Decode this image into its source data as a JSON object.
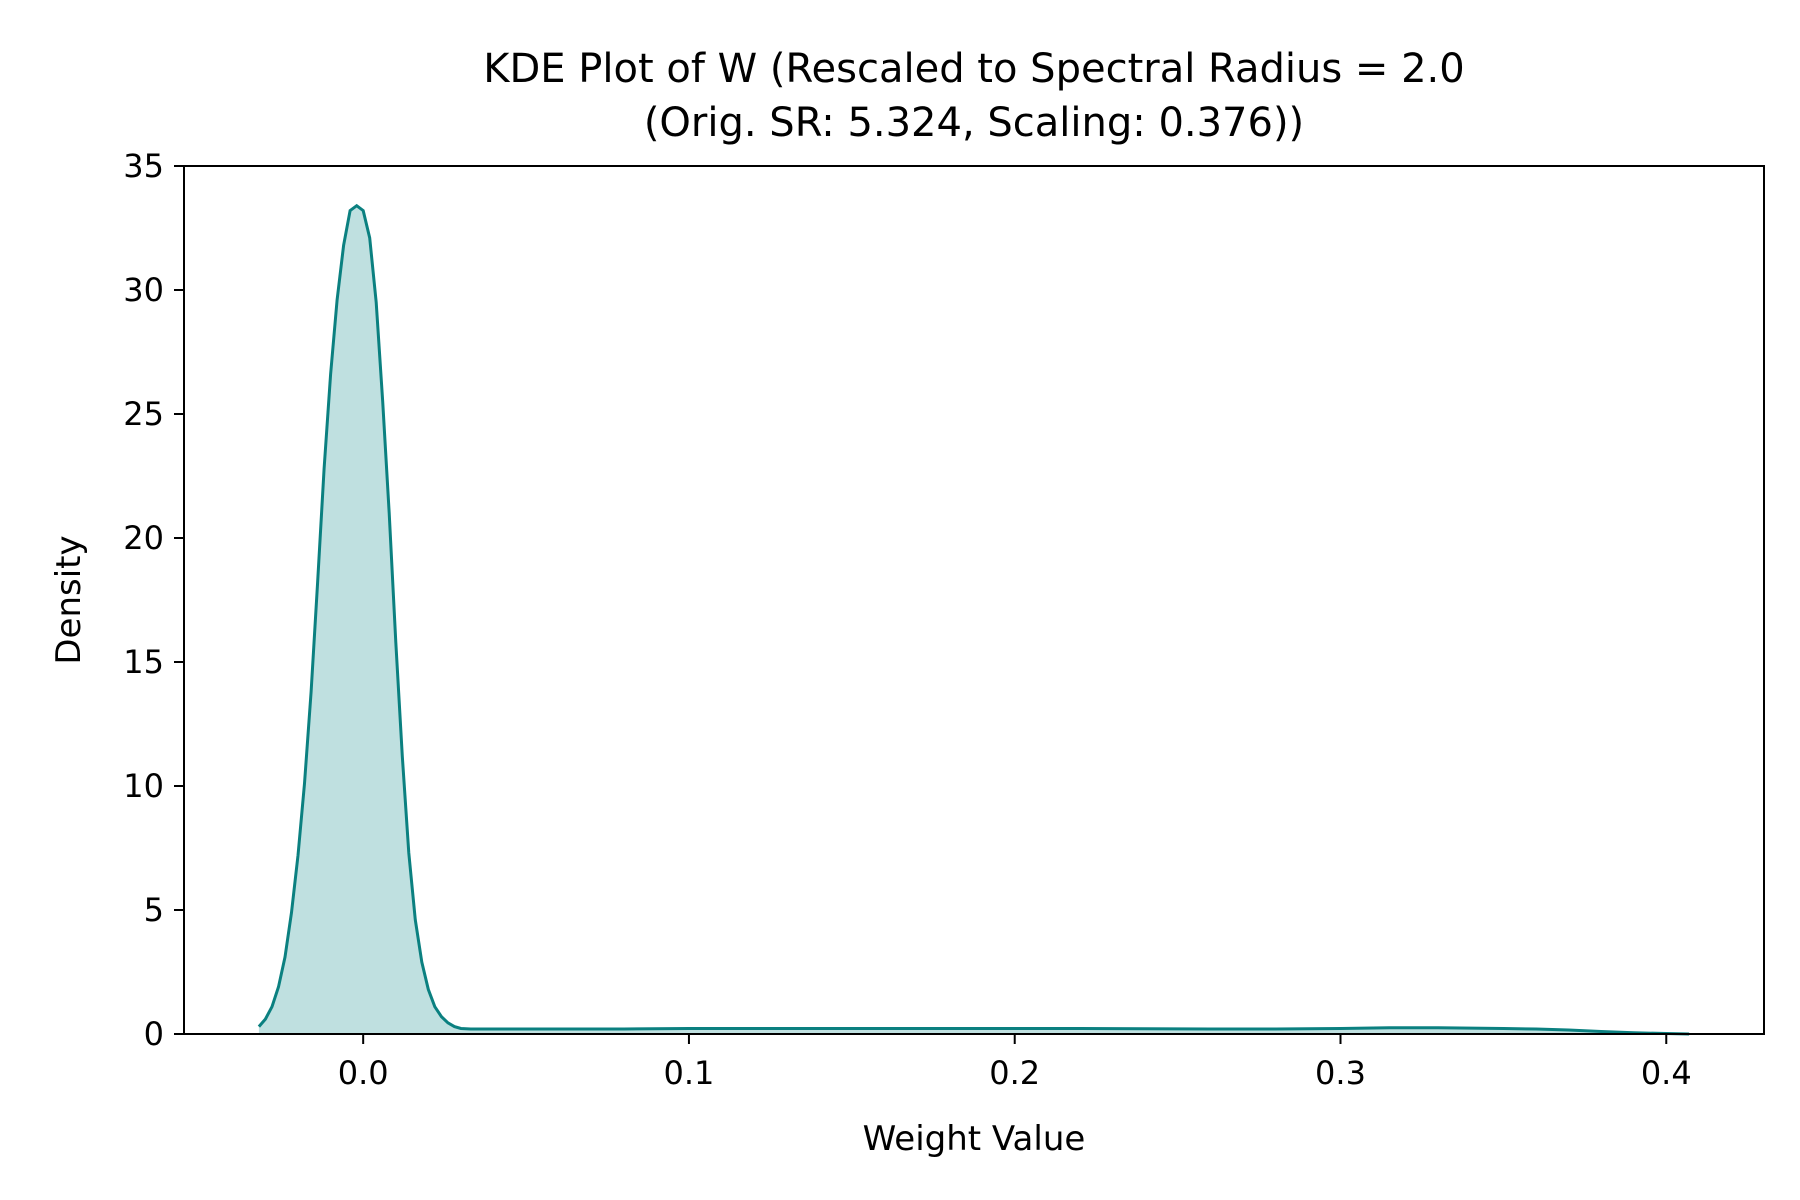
{
  "chart_data": {
    "type": "area",
    "title_line1": "KDE Plot of W (Rescaled to Spectral Radius = 2.0",
    "title_line2": "(Orig. SR: 5.324, Scaling: 0.376))",
    "xlabel": "Weight Value",
    "ylabel": "Density",
    "xlim": [
      -0.055,
      0.43
    ],
    "ylim": [
      0,
      35
    ],
    "xticks": [
      0.0,
      0.1,
      0.2,
      0.3,
      0.4
    ],
    "xtick_labels": [
      "0.0",
      "0.1",
      "0.2",
      "0.3",
      "0.4"
    ],
    "yticks": [
      0,
      5,
      10,
      15,
      20,
      25,
      30,
      35
    ],
    "ytick_labels": [
      "0",
      "5",
      "10",
      "15",
      "20",
      "25",
      "30",
      "35"
    ],
    "grid": false,
    "legend": "none",
    "line_color": "#0b8080",
    "fill_color": "#bfe0e0",
    "series": [
      {
        "x": [
          -0.032,
          -0.03,
          -0.028,
          -0.026,
          -0.024,
          -0.022,
          -0.02,
          -0.018,
          -0.016,
          -0.014,
          -0.012,
          -0.01,
          -0.008,
          -0.006,
          -0.004,
          -0.002,
          0.0,
          0.002,
          0.004,
          0.006,
          0.008,
          0.01,
          0.012,
          0.014,
          0.016,
          0.018,
          0.02,
          0.022,
          0.024,
          0.026,
          0.028,
          0.03,
          0.033,
          0.036,
          0.04,
          0.05,
          0.06,
          0.08,
          0.1,
          0.12,
          0.14,
          0.16,
          0.18,
          0.2,
          0.22,
          0.24,
          0.26,
          0.28,
          0.3,
          0.315,
          0.33,
          0.35,
          0.36,
          0.37,
          0.38,
          0.39,
          0.4,
          0.407
        ],
        "y": [
          0.3,
          0.6,
          1.1,
          1.9,
          3.1,
          4.9,
          7.2,
          10.1,
          13.8,
          18.2,
          22.8,
          26.6,
          29.6,
          31.8,
          33.2,
          33.4,
          33.2,
          32.1,
          29.5,
          25.5,
          21.0,
          15.8,
          11.2,
          7.3,
          4.6,
          2.9,
          1.8,
          1.1,
          0.7,
          0.45,
          0.3,
          0.22,
          0.2,
          0.2,
          0.2,
          0.2,
          0.2,
          0.2,
          0.22,
          0.22,
          0.22,
          0.22,
          0.22,
          0.22,
          0.22,
          0.21,
          0.2,
          0.2,
          0.22,
          0.25,
          0.25,
          0.22,
          0.2,
          0.16,
          0.1,
          0.05,
          0.02,
          0.0
        ]
      }
    ]
  }
}
